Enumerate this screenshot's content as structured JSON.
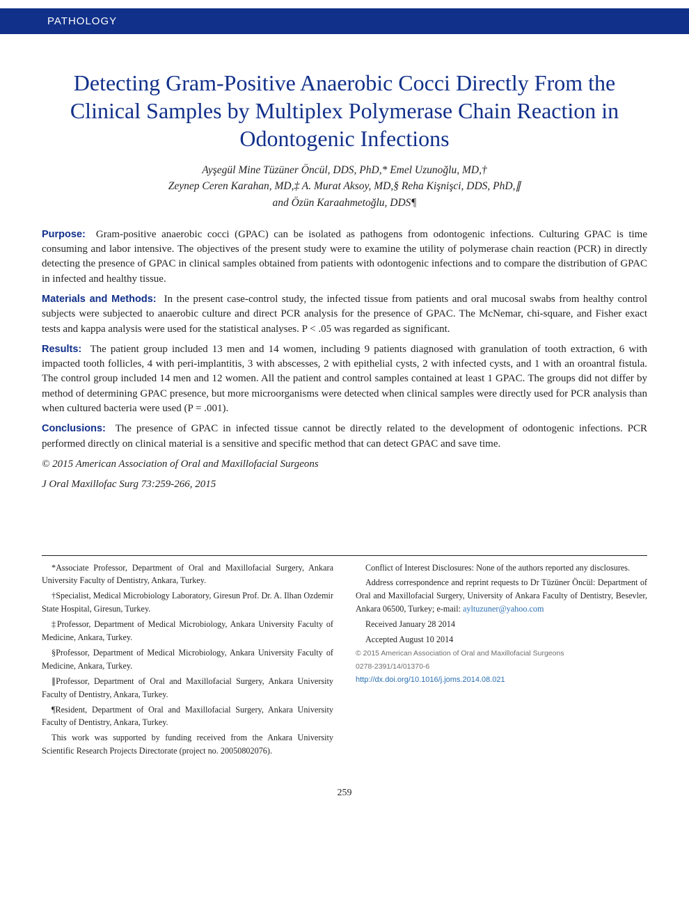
{
  "category": "PATHOLOGY",
  "title": "Detecting Gram-Positive Anaerobic Cocci Directly From the Clinical Samples by Multiplex Polymerase Chain Reaction in Odontogenic Infections",
  "authors_line1": "Ayşegül Mine Tüzüner Öncül, DDS, PhD,* Emel Uzunoğlu, MD,†",
  "authors_line2": "Zeynep Ceren Karahan, MD,‡ A. Murat Aksoy, MD,§ Reha Kişnişci, DDS, PhD,∥",
  "authors_line3": "and Özün Karaahmetoğlu, DDS¶",
  "abstract": {
    "purpose": {
      "label": "Purpose:",
      "text": "Gram-positive anaerobic cocci (GPAC) can be isolated as pathogens from odontogenic infections. Culturing GPAC is time consuming and labor intensive. The objectives of the present study were to examine the utility of polymerase chain reaction (PCR) in directly detecting the presence of GPAC in clinical samples obtained from patients with odontogenic infections and to compare the distribution of GPAC in infected and healthy tissue."
    },
    "methods": {
      "label": "Materials and Methods:",
      "text": "In the present case-control study, the infected tissue from patients and oral mucosal swabs from healthy control subjects were subjected to anaerobic culture and direct PCR analysis for the presence of GPAC. The McNemar, chi-square, and Fisher exact tests and kappa analysis were used for the statistical analyses. P < .05 was regarded as significant."
    },
    "results": {
      "label": "Results:",
      "text": "The patient group included 13 men and 14 women, including 9 patients diagnosed with granulation of tooth extraction, 6 with impacted tooth follicles, 4 with peri-implantitis, 3 with abscesses, 2 with epithelial cysts, 2 with infected cysts, and 1 with an oroantral fistula. The control group included 14 men and 12 women. All the patient and control samples contained at least 1 GPAC. The groups did not differ by method of determining GPAC presence, but more microorganisms were detected when clinical samples were directly used for PCR analysis than when cultured bacteria were used (P = .001)."
    },
    "conclusions": {
      "label": "Conclusions:",
      "text": "The presence of GPAC in infected tissue cannot be directly related to the development of odontogenic infections. PCR performed directly on clinical material is a sensitive and specific method that can detect GPAC and save time."
    },
    "copyright": "© 2015 American Association of Oral and Maxillofacial Surgeons",
    "citation": "J Oral Maxillofac Surg 73:259-266, 2015"
  },
  "footnotes": {
    "left": [
      "*Associate Professor, Department of Oral and Maxillofacial Surgery, Ankara University Faculty of Dentistry, Ankara, Turkey.",
      "†Specialist, Medical Microbiology Laboratory, Giresun Prof. Dr. A. Ilhan Ozdemir State Hospital, Giresun, Turkey.",
      "‡Professor, Department of Medical Microbiology, Ankara University Faculty of Medicine, Ankara, Turkey.",
      "§Professor, Department of Medical Microbiology, Ankara University Faculty of Medicine, Ankara, Turkey.",
      "∥Professor, Department of Oral and Maxillofacial Surgery, Ankara University Faculty of Dentistry, Ankara, Turkey.",
      "¶Resident, Department of Oral and Maxillofacial Surgery, Ankara University Faculty of Dentistry, Ankara, Turkey.",
      "This work was supported by funding received from the Ankara University Scientific Research Projects Directorate (project no. 20050802076)."
    ],
    "right": {
      "conflict": "Conflict of Interest Disclosures: None of the authors reported any disclosures.",
      "correspondence_pre": "Address correspondence and reprint requests to Dr Tüzüner Öncül: Department of Oral and Maxillofacial Surgery, University of Ankara Faculty of Dentistry, Besevler, Ankara 06500, Turkey; e-mail: ",
      "email": "ayltuzuner@yahoo.com",
      "received": "Received January 28 2014",
      "accepted": "Accepted August 10 2014",
      "rights": "© 2015 American Association of Oral and Maxillofacial Surgeons",
      "issn": "0278-2391/14/01370-6",
      "doi": "http://dx.doi.org/10.1016/j.joms.2014.08.021"
    }
  },
  "page_number": "259",
  "colors": {
    "brand": "#11308a",
    "link": "#2a6fb3",
    "text": "#231f20",
    "muted": "#6d6e71"
  }
}
